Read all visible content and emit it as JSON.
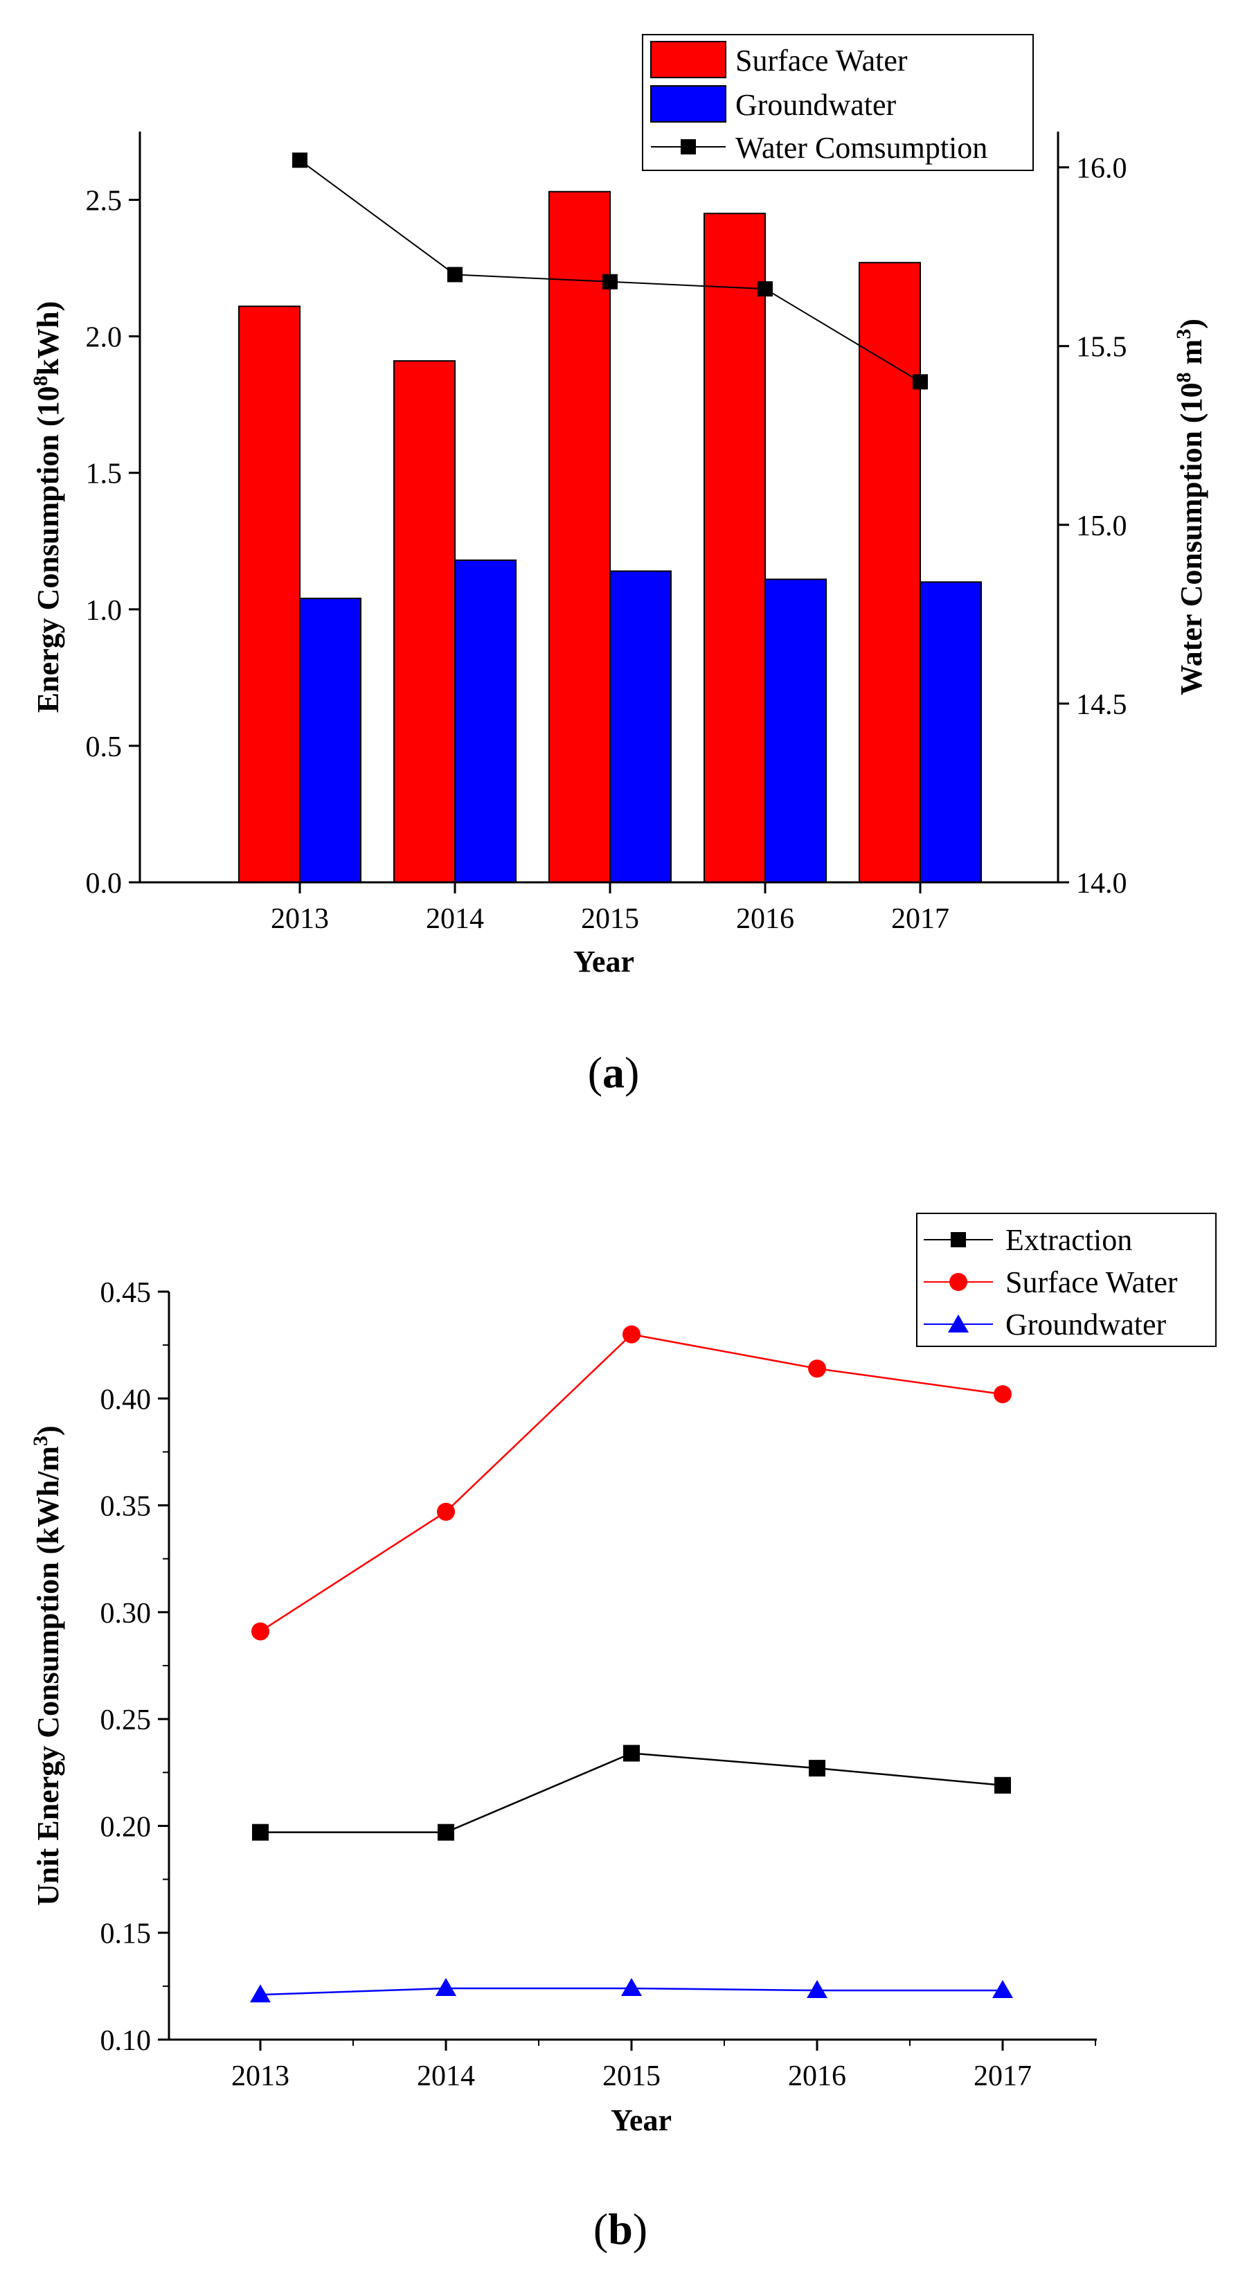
{
  "chart_data": [
    {
      "panel_label": "a",
      "type": "bar",
      "categories": [
        "2013",
        "2014",
        "2015",
        "2016",
        "2017"
      ],
      "series": [
        {
          "name": "Surface Water",
          "kind": "bar",
          "axis": "left",
          "color": "#ff0000",
          "values": [
            2.11,
            1.91,
            2.53,
            2.45,
            2.27
          ]
        },
        {
          "name": "Groundwater",
          "kind": "bar",
          "axis": "left",
          "color": "#0000ff",
          "values": [
            1.04,
            1.18,
            1.14,
            1.11,
            1.1
          ]
        },
        {
          "name": "Water Comsumption",
          "kind": "line",
          "axis": "right",
          "marker": "square",
          "color": "#000000",
          "values": [
            16.02,
            15.7,
            15.68,
            15.66,
            15.4
          ]
        }
      ],
      "xlabel": "Year",
      "ylabel_left": {
        "prefix": "Energy Consumption (10",
        "sup": "8",
        "suffix": "kWh)"
      },
      "ylabel_right": {
        "prefix": "Water Consumption (10",
        "sup1": "8",
        "mid": " m",
        "sup2": "3",
        "suffix": ")"
      },
      "ylim_left": [
        0,
        2.75
      ],
      "ylim_right": [
        14.0,
        16.1
      ],
      "yticks_left": [
        "0.0",
        "0.5",
        "1.0",
        "1.5",
        "2.0",
        "2.5"
      ],
      "yticks_right": [
        "14.0",
        "14.5",
        "15.0",
        "15.5",
        "16.0"
      ],
      "legend_position": "top-right"
    },
    {
      "panel_label": "b",
      "type": "line",
      "categories": [
        "2013",
        "2014",
        "2015",
        "2016",
        "2017"
      ],
      "series": [
        {
          "name": "Extraction",
          "marker": "square",
          "color": "#000000",
          "values": [
            0.197,
            0.197,
            0.234,
            0.227,
            0.219
          ]
        },
        {
          "name": "Surface Water",
          "marker": "circle",
          "color": "#ff0000",
          "values": [
            0.291,
            0.347,
            0.43,
            0.414,
            0.402
          ]
        },
        {
          "name": "Groundwater",
          "marker": "triangle",
          "color": "#0000ff",
          "values": [
            0.121,
            0.124,
            0.124,
            0.123,
            0.123
          ]
        }
      ],
      "xlabel": "Year",
      "ylabel": {
        "prefix": "Unit Energy Consumption (kWh/m",
        "sup": "3",
        "suffix": ")"
      },
      "ylim": [
        0.1,
        0.45
      ],
      "yticks": [
        "0.10",
        "0.15",
        "0.20",
        "0.25",
        "0.30",
        "0.35",
        "0.40",
        "0.45"
      ],
      "legend_position": "top-right"
    }
  ]
}
